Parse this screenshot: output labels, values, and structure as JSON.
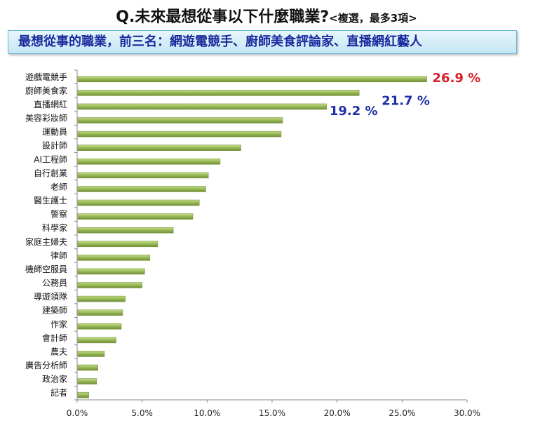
{
  "title": {
    "main": "Q.未來最想從事以下什麼職業?",
    "sub": "<複選，最多3項>"
  },
  "banner": "最想從事的職業，前三名：網遊電競手、廚師美食評論家、直播網紅藝人",
  "colors": {
    "bar": "#9bbb59",
    "bar_dark": "#6f8d36",
    "label_top": "#d9202a",
    "label_others": "#1f2fa8"
  },
  "chart_data": {
    "type": "bar",
    "orientation": "horizontal",
    "categories": [
      "遊戲電競手",
      "廚師美食家",
      "直播網紅",
      "美容彩妝師",
      "運動員",
      "設計師",
      "AI工程師",
      "自行創業",
      "老師",
      "醫生護士",
      "警察",
      "科學家",
      "家庭主婦夫",
      "律師",
      "機師空服員",
      "公務員",
      "導遊領隊",
      "建築師",
      "作家",
      "會計師",
      "農夫",
      "廣告分析師",
      "政治家",
      "記者"
    ],
    "values": [
      26.9,
      21.7,
      19.2,
      15.8,
      15.7,
      12.6,
      11.0,
      10.1,
      9.9,
      9.4,
      8.9,
      7.4,
      6.2,
      5.6,
      5.2,
      5.0,
      3.7,
      3.5,
      3.4,
      3.0,
      2.1,
      1.6,
      1.5,
      0.9
    ],
    "data_labels": [
      {
        "category": "遊戲電競手",
        "text": "26.9 %"
      },
      {
        "category": "廚師美食家",
        "text": "21.7 %"
      },
      {
        "category": "直播網紅",
        "text": "19.2 %"
      }
    ],
    "xlim": [
      0,
      30
    ],
    "xticks": [
      "0.0%",
      "5.0%",
      "10.0%",
      "15.0%",
      "20.0%",
      "25.0%",
      "30.0%"
    ],
    "xtick_values": [
      0,
      5,
      10,
      15,
      20,
      25,
      30
    ],
    "grid": false,
    "legend": "none"
  }
}
